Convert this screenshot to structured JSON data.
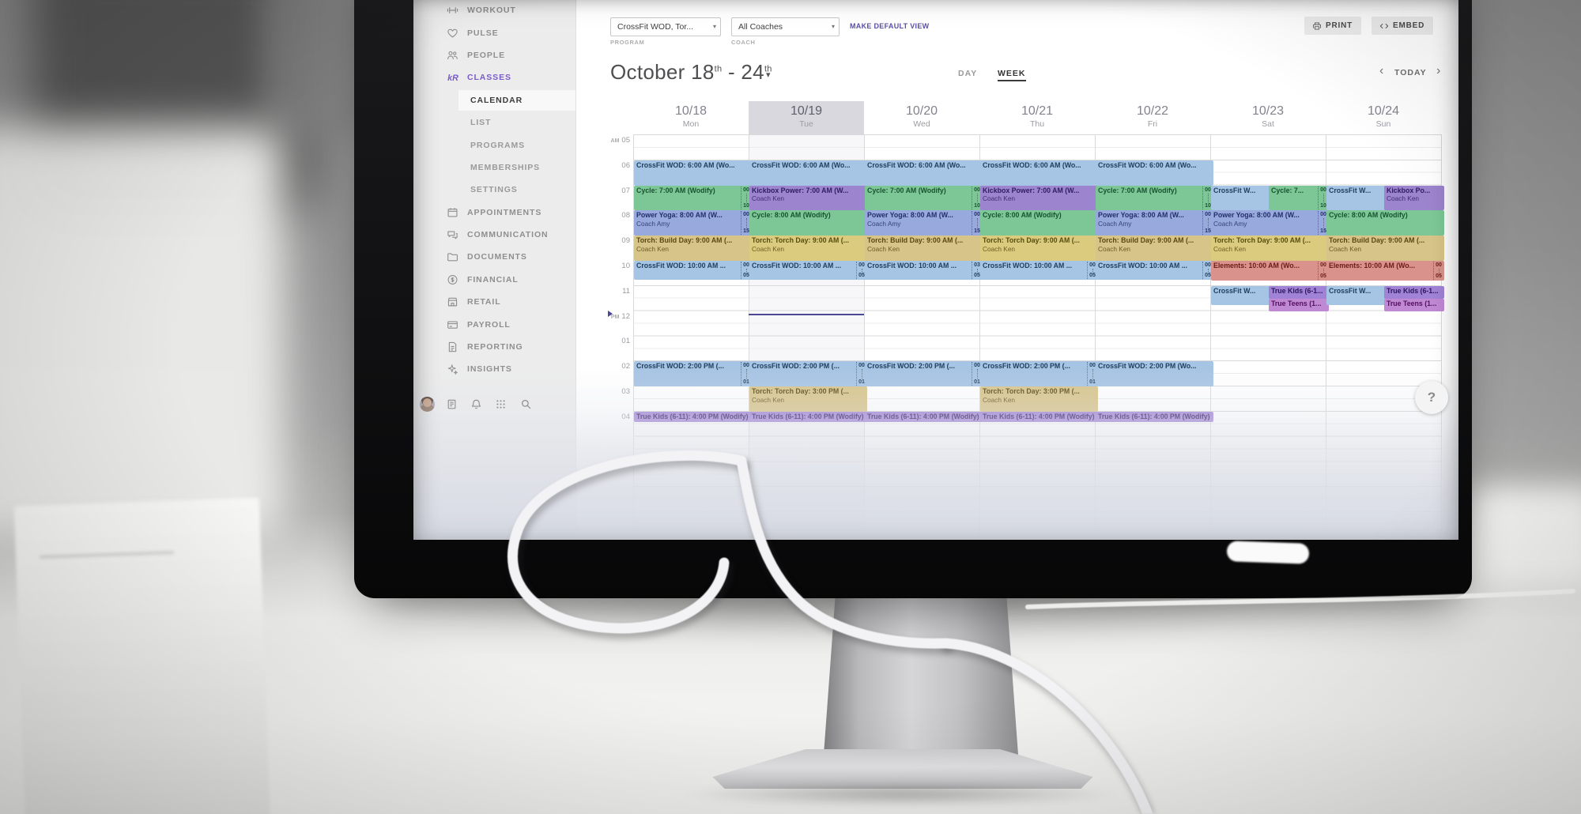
{
  "app": {
    "help_label": "?"
  },
  "colors": {
    "accent_purple": "#7a5cc5",
    "event_blue": "#a6c4e3",
    "event_green": "#7dc796",
    "event_purple": "#9d84ce",
    "event_periwinkle": "#97a9dd",
    "event_tan": "#d7c489",
    "event_yellow": "#dacb7f",
    "event_red": "#d9928c",
    "event_violet": "#a083d6",
    "event_magenta": "#c089d3",
    "now_line": "#4b4896"
  },
  "sidebar": {
    "items": [
      {
        "label": "WORKOUT",
        "icon": "dumbbell-icon"
      },
      {
        "label": "PULSE",
        "icon": "pulse-icon"
      },
      {
        "label": "PEOPLE",
        "icon": "people-icon"
      },
      {
        "label": "CLASSES",
        "icon": "classes-icon",
        "active": true
      },
      {
        "label": "CALENDAR",
        "sub": true,
        "active": true
      },
      {
        "label": "LIST",
        "sub": true
      },
      {
        "label": "PROGRAMS",
        "sub": true
      },
      {
        "label": "MEMBERSHIPS",
        "sub": true
      },
      {
        "label": "SETTINGS",
        "sub": true
      },
      {
        "label": "APPOINTMENTS",
        "icon": "appointments-icon"
      },
      {
        "label": "COMMUNICATION",
        "icon": "communication-icon"
      },
      {
        "label": "DOCUMENTS",
        "icon": "documents-icon"
      },
      {
        "label": "FINANCIAL",
        "icon": "financial-icon"
      },
      {
        "label": "RETAIL",
        "icon": "retail-icon"
      },
      {
        "label": "PAYROLL",
        "icon": "payroll-icon"
      },
      {
        "label": "REPORTING",
        "icon": "reporting-icon"
      },
      {
        "label": "INSIGHTS",
        "icon": "insights-icon"
      }
    ],
    "footer_icons": [
      "avatar",
      "notes-icon",
      "bell-icon",
      "apps-grid-icon",
      "search-icon"
    ]
  },
  "toolbar": {
    "program_value": "CrossFit WOD, Tor...",
    "program_label": "PROGRAM",
    "coach_value": "All Coaches",
    "coach_label": "COACH",
    "make_default_label": "MAKE DEFAULT VIEW",
    "print_label": "PRINT",
    "embed_label": "EMBED",
    "caret_icon": "▾"
  },
  "calendar": {
    "title_prefix": "October 18",
    "title_sup1": "th",
    "title_mid": " - 24",
    "title_sup2": "th",
    "view_day": "DAY",
    "view_week": "WEEK",
    "today_label": "TODAY",
    "nav_prev": "‹",
    "nav_next": "›",
    "days": [
      {
        "date": "10/18",
        "name": "Mon"
      },
      {
        "date": "10/19",
        "name": "Tue",
        "highlight": true
      },
      {
        "date": "10/20",
        "name": "Wed"
      },
      {
        "date": "10/21",
        "name": "Thu"
      },
      {
        "date": "10/22",
        "name": "Fri"
      },
      {
        "date": "10/23",
        "name": "Sat"
      },
      {
        "date": "10/24",
        "name": "Sun"
      }
    ],
    "times": [
      {
        "meridiem": "AM",
        "hour": "05"
      },
      {
        "hour": "06"
      },
      {
        "hour": "07"
      },
      {
        "hour": "08"
      },
      {
        "hour": "09"
      },
      {
        "hour": "10"
      },
      {
        "hour": "11"
      },
      {
        "meridiem": "PM",
        "hour": "12"
      },
      {
        "hour": "01"
      },
      {
        "hour": "02"
      },
      {
        "hour": "03"
      },
      {
        "hour": "04"
      }
    ],
    "now": {
      "day_index": 1,
      "hour": 12.15
    },
    "events": [
      {
        "day": 0,
        "start": 6,
        "duration": 1,
        "color": "blue",
        "title": "CrossFit WOD: 6:00 AM (Wo..."
      },
      {
        "day": 0,
        "start": 7,
        "duration": 1,
        "color": "green",
        "title": "Cycle: 7:00 AM (Wodify)",
        "attended": "00",
        "capacity": "10"
      },
      {
        "day": 0,
        "start": 8,
        "duration": 1,
        "color": "periwinkle",
        "title": "Power Yoga: 8:00 AM (W...",
        "coach": "Coach Amy",
        "attended": "00",
        "capacity": "15"
      },
      {
        "day": 0,
        "start": 9,
        "duration": 1,
        "color": "tan",
        "title": "Torch: Build Day: 9:00 AM (...",
        "coach": "Coach Ken"
      },
      {
        "day": 0,
        "start": 10,
        "duration": 0.75,
        "color": "blue",
        "title": "CrossFit WOD: 10:00 AM ...",
        "attended": "00",
        "capacity": "05"
      },
      {
        "day": 0,
        "start": 14,
        "duration": 1,
        "color": "blue",
        "title": "CrossFit WOD: 2:00 PM (...",
        "attended": "00",
        "capacity": "01"
      },
      {
        "day": 0,
        "start": 16,
        "duration": 0.42,
        "color": "violet",
        "title": "True Kids (6-11): 4:00 PM (Wodify)"
      },
      {
        "day": 1,
        "start": 6,
        "duration": 1,
        "color": "blue",
        "title": "CrossFit WOD: 6:00 AM (Wo..."
      },
      {
        "day": 1,
        "start": 7,
        "duration": 1,
        "color": "purple",
        "title": "Kickbox Power: 7:00 AM (W...",
        "coach": "Coach Ken"
      },
      {
        "day": 1,
        "start": 8,
        "duration": 1,
        "color": "green",
        "title": "Cycle: 8:00 AM (Wodify)"
      },
      {
        "day": 1,
        "start": 9,
        "duration": 1,
        "color": "yellow",
        "title": "Torch: Torch Day: 9:00 AM (...",
        "coach": "Coach Ken"
      },
      {
        "day": 1,
        "start": 10,
        "duration": 0.75,
        "color": "blue",
        "title": "CrossFit WOD: 10:00 AM ...",
        "attended": "00",
        "capacity": "05"
      },
      {
        "day": 1,
        "start": 14,
        "duration": 1,
        "color": "blue",
        "title": "CrossFit WOD: 2:00 PM (...",
        "attended": "00",
        "capacity": "01"
      },
      {
        "day": 1,
        "start": 15,
        "duration": 1,
        "color": "tan",
        "title": "Torch: Torch Day: 3:00 PM (...",
        "coach": "Coach Ken"
      },
      {
        "day": 1,
        "start": 16,
        "duration": 0.42,
        "color": "violet",
        "title": "True Kids (6-11): 4:00 PM (Wodify)"
      },
      {
        "day": 2,
        "start": 6,
        "duration": 1,
        "color": "blue",
        "title": "CrossFit WOD: 6:00 AM (Wo..."
      },
      {
        "day": 2,
        "start": 7,
        "duration": 1,
        "color": "green",
        "title": "Cycle: 7:00 AM (Wodify)",
        "attended": "00",
        "capacity": "10"
      },
      {
        "day": 2,
        "start": 8,
        "duration": 1,
        "color": "periwinkle",
        "title": "Power Yoga: 8:00 AM (W...",
        "coach": "Coach Amy",
        "attended": "00",
        "capacity": "15"
      },
      {
        "day": 2,
        "start": 9,
        "duration": 1,
        "color": "tan",
        "title": "Torch: Build Day: 9:00 AM (...",
        "coach": "Coach Ken"
      },
      {
        "day": 2,
        "start": 10,
        "duration": 0.75,
        "color": "blue",
        "title": "CrossFit WOD: 10:00 AM ...",
        "attended": "03",
        "capacity": "05"
      },
      {
        "day": 2,
        "start": 14,
        "duration": 1,
        "color": "blue",
        "title": "CrossFit WOD: 2:00 PM (...",
        "attended": "00",
        "capacity": "01"
      },
      {
        "day": 2,
        "start": 16,
        "duration": 0.42,
        "color": "violet",
        "title": "True Kids (6-11): 4:00 PM (Wodify)"
      },
      {
        "day": 3,
        "start": 6,
        "duration": 1,
        "color": "blue",
        "title": "CrossFit WOD: 6:00 AM (Wo..."
      },
      {
        "day": 3,
        "start": 7,
        "duration": 1,
        "color": "purple",
        "title": "Kickbox Power: 7:00 AM (W...",
        "coach": "Coach Ken"
      },
      {
        "day": 3,
        "start": 8,
        "duration": 1,
        "color": "green",
        "title": "Cycle: 8:00 AM (Wodify)"
      },
      {
        "day": 3,
        "start": 9,
        "duration": 1,
        "color": "yellow",
        "title": "Torch: Torch Day: 9:00 AM (...",
        "coach": "Coach Ken"
      },
      {
        "day": 3,
        "start": 10,
        "duration": 0.75,
        "color": "blue",
        "title": "CrossFit WOD: 10:00 AM ...",
        "attended": "00",
        "capacity": "05"
      },
      {
        "day": 3,
        "start": 14,
        "duration": 1,
        "color": "blue",
        "title": "CrossFit WOD: 2:00 PM (...",
        "attended": "00",
        "capacity": "01"
      },
      {
        "day": 3,
        "start": 15,
        "duration": 1,
        "color": "tan",
        "title": "Torch: Torch Day: 3:00 PM (...",
        "coach": "Coach Ken"
      },
      {
        "day": 3,
        "start": 16,
        "duration": 0.42,
        "color": "violet",
        "title": "True Kids (6-11): 4:00 PM (Wodify)"
      },
      {
        "day": 4,
        "start": 6,
        "duration": 1,
        "color": "blue",
        "title": "CrossFit WOD: 6:00 AM (Wo..."
      },
      {
        "day": 4,
        "start": 7,
        "duration": 1,
        "color": "green",
        "title": "Cycle: 7:00 AM (Wodify)",
        "attended": "00",
        "capacity": "10"
      },
      {
        "day": 4,
        "start": 8,
        "duration": 1,
        "color": "periwinkle",
        "title": "Power Yoga: 8:00 AM (W...",
        "coach": "Coach Amy",
        "attended": "00",
        "capacity": "15"
      },
      {
        "day": 4,
        "start": 9,
        "duration": 1,
        "color": "tan",
        "title": "Torch: Build Day: 9:00 AM (...",
        "coach": "Coach Ken"
      },
      {
        "day": 4,
        "start": 10,
        "duration": 0.75,
        "color": "blue",
        "title": "CrossFit WOD: 10:00 AM ...",
        "attended": "00",
        "capacity": "05"
      },
      {
        "day": 4,
        "start": 14,
        "duration": 1,
        "color": "blue",
        "title": "CrossFit WOD: 2:00 PM (Wo..."
      },
      {
        "day": 4,
        "start": 16,
        "duration": 0.42,
        "color": "violet",
        "title": "True Kids (6-11): 4:00 PM (Wodify)"
      },
      {
        "day": 5,
        "start": 7,
        "duration": 1,
        "color": "blue",
        "title": "CrossFit W...",
        "x": 0,
        "w": 0.5
      },
      {
        "day": 5,
        "start": 7,
        "duration": 1,
        "color": "green",
        "title": "Cycle: 7...",
        "attended": "00",
        "capacity": "10",
        "x": 0.5,
        "w": 0.5
      },
      {
        "day": 5,
        "start": 8,
        "duration": 1,
        "color": "periwinkle",
        "title": "Power Yoga: 8:00 AM (W...",
        "coach": "Coach Amy",
        "attended": "00",
        "capacity": "15"
      },
      {
        "day": 5,
        "start": 9,
        "duration": 1,
        "color": "yellow",
        "title": "Torch: Torch Day: 9:00 AM (...",
        "coach": "Coach Ken"
      },
      {
        "day": 5,
        "start": 10,
        "duration": 0.78,
        "color": "red",
        "title": "Elements: 10:00 AM (Wo...",
        "attended": "00",
        "capacity": "05"
      },
      {
        "day": 5,
        "start": 11,
        "duration": 0.75,
        "color": "blue",
        "title": "CrossFit W...",
        "x": 0,
        "w": 0.5
      },
      {
        "day": 5,
        "start": 11,
        "duration": 0.5,
        "color": "violet",
        "title": "True Kids (6-1...",
        "x": 0.5,
        "w": 0.5
      },
      {
        "day": 5,
        "start": 11.5,
        "duration": 0.5,
        "color": "magenta",
        "title": "True Teens (1...",
        "x": 0.5,
        "w": 0.5
      },
      {
        "day": 6,
        "start": 7,
        "duration": 1,
        "color": "blue",
        "title": "CrossFit W...",
        "x": 0,
        "w": 0.5
      },
      {
        "day": 6,
        "start": 7,
        "duration": 1,
        "color": "purple",
        "title": "Kickbox Po...",
        "coach": "Coach Ken",
        "x": 0.5,
        "w": 0.5
      },
      {
        "day": 6,
        "start": 8,
        "duration": 1,
        "color": "green",
        "title": "Cycle: 8:00 AM (Wodify)"
      },
      {
        "day": 6,
        "start": 9,
        "duration": 1,
        "color": "tan",
        "title": "Torch: Build Day: 9:00 AM (...",
        "coach": "Coach Ken"
      },
      {
        "day": 6,
        "start": 10,
        "duration": 0.78,
        "color": "red",
        "title": "Elements: 10:00 AM (Wo...",
        "attended": "00",
        "capacity": "05"
      },
      {
        "day": 6,
        "start": 11,
        "duration": 0.75,
        "color": "blue",
        "title": "CrossFit W...",
        "x": 0,
        "w": 0.5
      },
      {
        "day": 6,
        "start": 11,
        "duration": 0.5,
        "color": "violet",
        "title": "True Kids (6-1...",
        "x": 0.5,
        "w": 0.5
      },
      {
        "day": 6,
        "start": 11.5,
        "duration": 0.5,
        "color": "magenta",
        "title": "True Teens (1...",
        "x": 0.5,
        "w": 0.5
      }
    ]
  }
}
